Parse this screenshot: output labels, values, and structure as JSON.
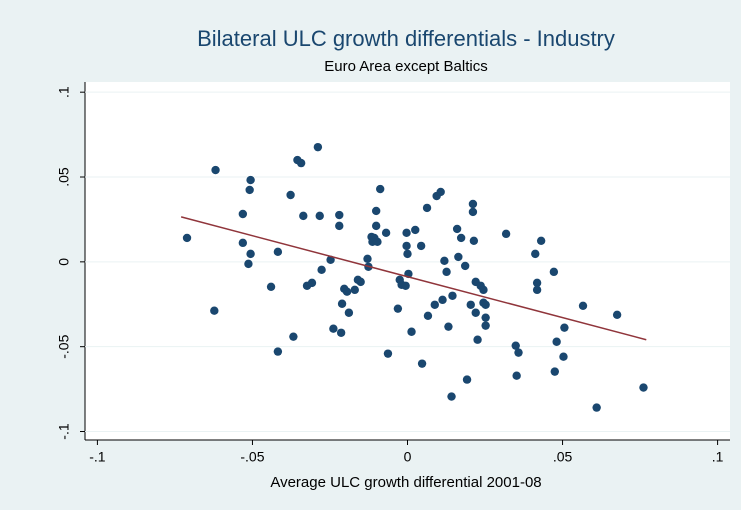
{
  "chart_data": {
    "type": "scatter",
    "title": "Bilateral ULC growth differentials - Industry",
    "subtitle": "Euro Area except Baltics",
    "x_label": "Average ULC growth differential 2001-08",
    "xlim": [
      -0.104,
      0.104
    ],
    "ylim": [
      -0.105,
      0.106
    ],
    "xticks": [
      {
        "value": -0.1,
        "label": "-.1"
      },
      {
        "value": -0.05,
        "label": "-.05"
      },
      0,
      {
        "value": 0.05,
        "label": ".05"
      },
      {
        "value": 0.1,
        "label": ".1"
      }
    ],
    "yticks": [
      {
        "value": -0.1,
        "label": "-.1"
      },
      {
        "value": -0.05,
        "label": "-.05"
      },
      0,
      {
        "value": 0.05,
        "label": ".05"
      },
      {
        "value": 0.1,
        "label": ".1"
      }
    ],
    "grid": true,
    "color": "#1a476f",
    "x": [
      -0.0711,
      -0.0619,
      -0.0623,
      -0.0531,
      -0.0506,
      -0.0509,
      -0.0531,
      -0.0506,
      -0.0513,
      -0.0418,
      -0.044,
      -0.0418,
      -0.0377,
      -0.0368,
      -0.0355,
      -0.0343,
      -0.0336,
      -0.0324,
      -0.0308,
      -0.0289,
      -0.0283,
      -0.0277,
      -0.0248,
      -0.0239,
      -0.022,
      -0.022,
      -0.0211,
      -0.0214,
      -0.0204,
      -0.0195,
      -0.0189,
      -0.017,
      -0.016,
      -0.0151,
      -0.0129,
      -0.0126,
      -0.0116,
      -0.0113,
      -0.0107,
      -0.0101,
      -0.0101,
      -0.0097,
      -0.0088,
      -0.0069,
      -0.0063,
      -0.0031,
      -0.0025,
      -0.0019,
      -0.0006,
      -0.0003,
      0,
      -0.0003,
      0.0003,
      0.0013,
      0.0025,
      0.0044,
      0.0047,
      0.0063,
      0.0066,
      0.0088,
      0.0094,
      0.0107,
      0.0113,
      0.0119,
      0.0126,
      0.0132,
      0.0142,
      0.0145,
      0.016,
      0.0164,
      0.0173,
      0.0186,
      0.0192,
      0.0204,
      0.0211,
      0.0214,
      0.0211,
      0.022,
      0.022,
      0.0226,
      0.0236,
      0.0245,
      0.0245,
      0.0252,
      0.0252,
      0.0252,
      0.0318,
      0.0349,
      0.0352,
      0.0358,
      0.0412,
      0.0418,
      0.0418,
      0.0431,
      0.0472,
      0.0481,
      0.0475,
      0.0503,
      0.0506,
      0.0566,
      0.061,
      0.0676,
      0.0761
    ],
    "y": [
      0.0141,
      0.0541,
      -0.0288,
      0.0282,
      0.0482,
      0.0424,
      0.0112,
      0.0047,
      -0.0012,
      0.0059,
      -0.0147,
      -0.0529,
      0.0394,
      -0.0441,
      0.06,
      0.0582,
      0.0271,
      -0.0141,
      -0.0124,
      0.0676,
      0.0271,
      -0.0047,
      0.0012,
      -0.0394,
      0.0276,
      0.0212,
      -0.0247,
      -0.0418,
      -0.0159,
      -0.0176,
      -0.03,
      -0.0165,
      -0.0106,
      -0.0118,
      0.0018,
      -0.0029,
      0.0147,
      0.0118,
      0.0141,
      0.0212,
      0.03,
      0.0118,
      0.0429,
      0.0171,
      -0.0541,
      -0.0276,
      -0.0106,
      -0.0135,
      -0.0141,
      0.0094,
      0.0047,
      0.0171,
      -0.0071,
      -0.0412,
      0.0188,
      0.0094,
      -0.06,
      0.0318,
      -0.0318,
      -0.0253,
      0.0388,
      0.0412,
      -0.0224,
      0.0006,
      -0.0059,
      -0.0382,
      -0.0794,
      -0.02,
      0.0194,
      0.0029,
      0.0141,
      -0.0024,
      -0.0694,
      -0.0253,
      0.0341,
      0.0124,
      0.0294,
      -0.0118,
      -0.03,
      -0.0459,
      -0.0141,
      -0.0241,
      -0.0165,
      -0.0329,
      -0.0376,
      -0.0253,
      0.0165,
      -0.0494,
      -0.0671,
      -0.0535,
      0.0047,
      -0.0124,
      -0.0165,
      0.0124,
      -0.0059,
      -0.0471,
      -0.0647,
      -0.0559,
      -0.0388,
      -0.0259,
      -0.0859,
      -0.0312,
      -0.0741
    ],
    "fit": {
      "x": [
        -0.073,
        0.077
      ],
      "y": [
        0.0265,
        -0.0459
      ],
      "color": "#90353b"
    }
  }
}
